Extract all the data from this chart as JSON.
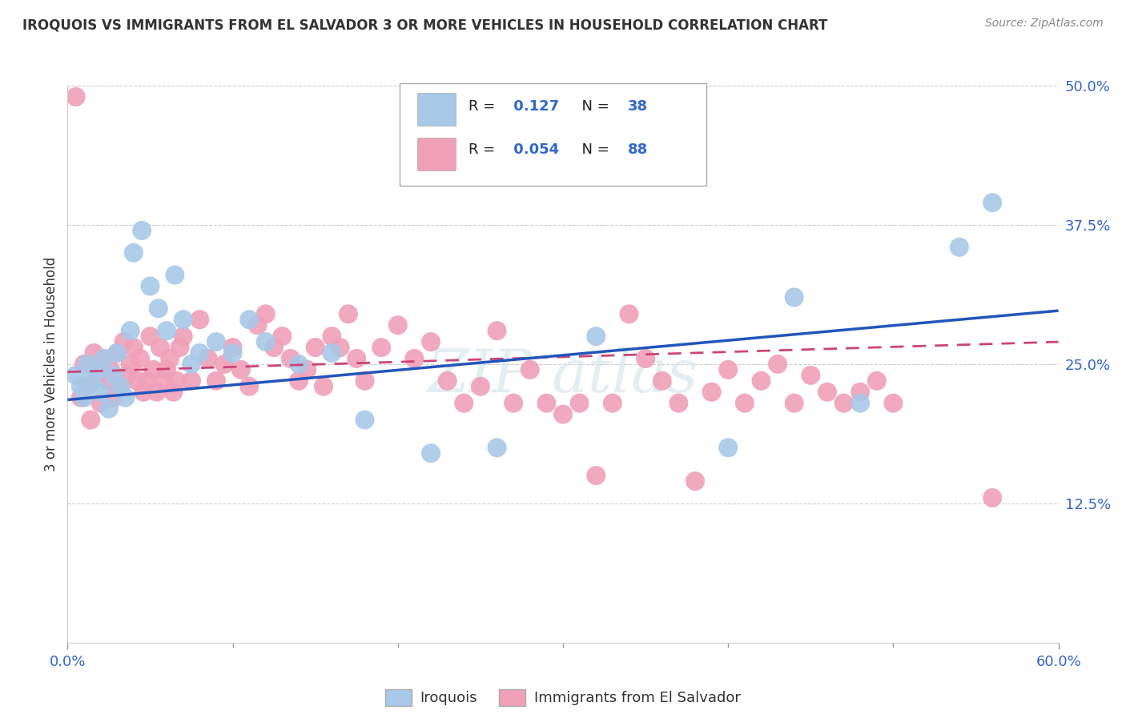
{
  "title": "IROQUOIS VS IMMIGRANTS FROM EL SALVADOR 3 OR MORE VEHICLES IN HOUSEHOLD CORRELATION CHART",
  "source": "Source: ZipAtlas.com",
  "ylabel": "3 or more Vehicles in Household",
  "x_min": 0.0,
  "x_max": 0.6,
  "y_min": 0.0,
  "y_max": 0.5,
  "legend_labels": [
    "Iroquois",
    "Immigrants from El Salvador"
  ],
  "r_iroquois": 0.127,
  "n_iroquois": 38,
  "r_salvador": 0.054,
  "n_salvador": 88,
  "color_iroquois": "#a8c8e8",
  "color_salvador": "#f0a0b8",
  "line_color_iroquois": "#2255bb",
  "line_color_salvador": "#cc4477",
  "background_color": "#ffffff",
  "grid_color": "#cccccc",
  "watermark": "ZIPatlas",
  "iroquois_x": [
    0.005,
    0.008,
    0.01,
    0.012,
    0.015,
    0.018,
    0.02,
    0.022,
    0.025,
    0.028,
    0.03,
    0.032,
    0.035,
    0.038,
    0.04,
    0.045,
    0.05,
    0.055,
    0.06,
    0.065,
    0.07,
    0.075,
    0.08,
    0.09,
    0.1,
    0.11,
    0.12,
    0.14,
    0.16,
    0.18,
    0.22,
    0.26,
    0.32,
    0.4,
    0.44,
    0.48,
    0.54,
    0.56
  ],
  "iroquois_y": [
    0.24,
    0.23,
    0.22,
    0.25,
    0.235,
    0.245,
    0.225,
    0.255,
    0.21,
    0.24,
    0.26,
    0.23,
    0.22,
    0.28,
    0.35,
    0.37,
    0.32,
    0.3,
    0.28,
    0.33,
    0.29,
    0.25,
    0.26,
    0.27,
    0.26,
    0.29,
    0.27,
    0.25,
    0.26,
    0.2,
    0.17,
    0.175,
    0.275,
    0.175,
    0.31,
    0.215,
    0.355,
    0.395
  ],
  "salvador_x": [
    0.005,
    0.008,
    0.01,
    0.012,
    0.014,
    0.016,
    0.018,
    0.02,
    0.022,
    0.024,
    0.026,
    0.028,
    0.03,
    0.032,
    0.034,
    0.036,
    0.038,
    0.04,
    0.042,
    0.044,
    0.046,
    0.048,
    0.05,
    0.052,
    0.054,
    0.056,
    0.058,
    0.06,
    0.062,
    0.064,
    0.066,
    0.068,
    0.07,
    0.075,
    0.08,
    0.085,
    0.09,
    0.095,
    0.1,
    0.105,
    0.11,
    0.115,
    0.12,
    0.125,
    0.13,
    0.135,
    0.14,
    0.145,
    0.15,
    0.155,
    0.16,
    0.165,
    0.17,
    0.175,
    0.18,
    0.19,
    0.2,
    0.21,
    0.22,
    0.23,
    0.24,
    0.25,
    0.26,
    0.27,
    0.28,
    0.29,
    0.3,
    0.31,
    0.32,
    0.33,
    0.34,
    0.35,
    0.36,
    0.37,
    0.38,
    0.39,
    0.4,
    0.41,
    0.42,
    0.43,
    0.44,
    0.45,
    0.46,
    0.47,
    0.48,
    0.49,
    0.5,
    0.56
  ],
  "salvador_y": [
    0.49,
    0.22,
    0.25,
    0.23,
    0.2,
    0.26,
    0.24,
    0.215,
    0.255,
    0.235,
    0.245,
    0.22,
    0.26,
    0.23,
    0.27,
    0.24,
    0.25,
    0.265,
    0.235,
    0.255,
    0.225,
    0.235,
    0.275,
    0.245,
    0.225,
    0.265,
    0.235,
    0.245,
    0.255,
    0.225,
    0.235,
    0.265,
    0.275,
    0.235,
    0.29,
    0.255,
    0.235,
    0.25,
    0.265,
    0.245,
    0.23,
    0.285,
    0.295,
    0.265,
    0.275,
    0.255,
    0.235,
    0.245,
    0.265,
    0.23,
    0.275,
    0.265,
    0.295,
    0.255,
    0.235,
    0.265,
    0.285,
    0.255,
    0.27,
    0.235,
    0.215,
    0.23,
    0.28,
    0.215,
    0.245,
    0.215,
    0.205,
    0.215,
    0.15,
    0.215,
    0.295,
    0.255,
    0.235,
    0.215,
    0.145,
    0.225,
    0.245,
    0.215,
    0.235,
    0.25,
    0.215,
    0.24,
    0.225,
    0.215,
    0.225,
    0.235,
    0.215,
    0.13
  ],
  "line_iro_x0": 0.0,
  "line_iro_x1": 0.6,
  "line_iro_y0": 0.218,
  "line_iro_y1": 0.298,
  "line_sal_x0": 0.0,
  "line_sal_x1": 0.6,
  "line_sal_y0": 0.243,
  "line_sal_y1": 0.27
}
